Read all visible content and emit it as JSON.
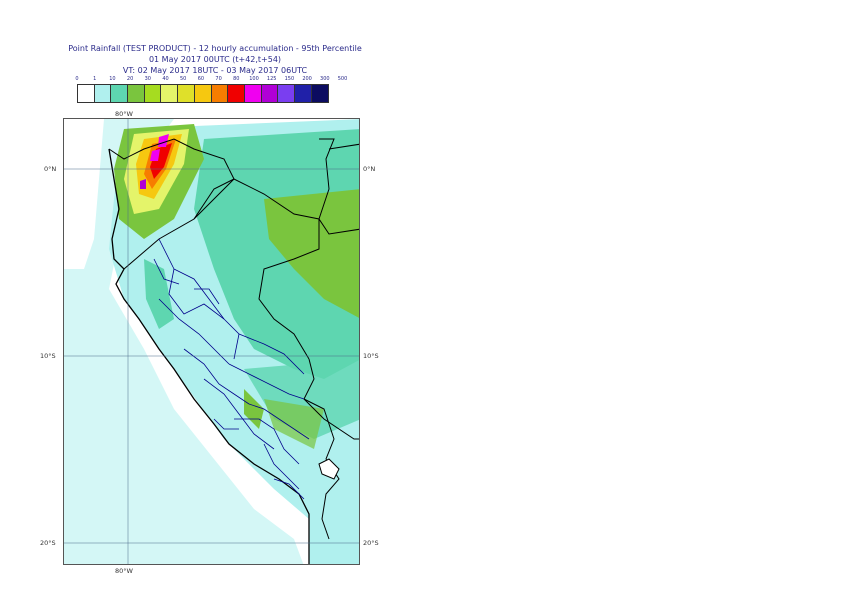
{
  "header": {
    "title_line1": "Point Rainfall (TEST PRODUCT) - 12 hourly accumulation - 95th Percentile",
    "title_line2": "01 May 2017 00UTC (t+42,t+54)",
    "title_line3": "VT: 02 May 2017 18UTC - 03 May 2017 06UTC"
  },
  "legend": {
    "ticks": [
      "0",
      "1",
      "10",
      "20",
      "30",
      "40",
      "50",
      "60",
      "70",
      "80",
      "100",
      "125",
      "150",
      "200",
      "300",
      "500"
    ],
    "colors": [
      "#ffffff",
      "#b0f0ee",
      "#5ed6b0",
      "#7ac53e",
      "#a6dc20",
      "#e4f46a",
      "#dfe02a",
      "#f6c810",
      "#f77d00",
      "#f00000",
      "#f000f0",
      "#b000d6",
      "#7a3ef0",
      "#2020a8",
      "#0c0c60"
    ]
  },
  "map": {
    "graticule": {
      "top_lon": "80°W",
      "bottom_lon": "80°W",
      "lat_left": [
        "0°N",
        "10°S",
        "20°S"
      ],
      "lat_right": [
        "0°N",
        "10°S",
        "20°S"
      ]
    }
  }
}
